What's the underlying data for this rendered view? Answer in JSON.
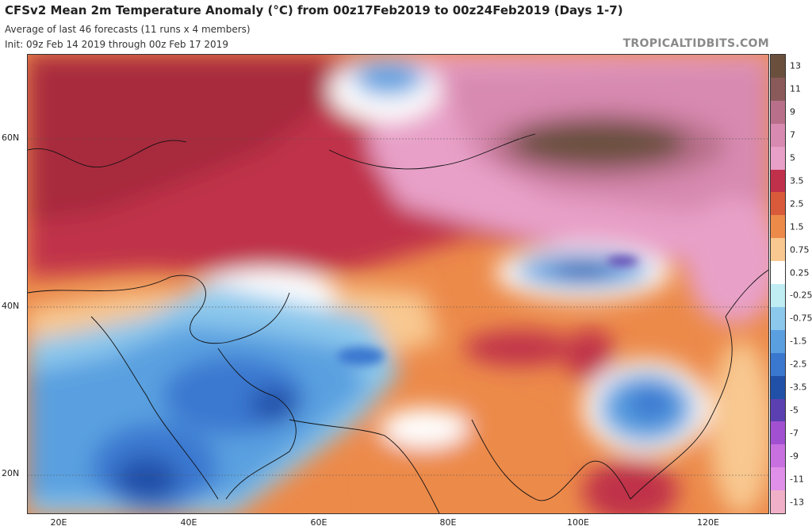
{
  "header": {
    "title": "CFSv2 Mean 2m Temperature Anomaly (°C) from 00z17Feb2019 to 00z24Feb2019 (Days 1-7)",
    "subtitle1": "Average of last 46 forecasts (11 runs x 4 members)",
    "subtitle2": "Init: 09z Feb 14 2019 through 00z Feb 17 2019",
    "watermark": "TROPICALTIDBITS.COM"
  },
  "axes": {
    "lat_labels": [
      "60N",
      "40N",
      "20N"
    ],
    "lon_labels": [
      "20E",
      "40E",
      "60E",
      "80E",
      "100E",
      "120E"
    ]
  },
  "colorbar": {
    "labels": [
      "13",
      "11",
      "9",
      "7",
      "5",
      "3.5",
      "2.5",
      "1.5",
      "0.75",
      "0.25",
      "-0.25",
      "-0.75",
      "-1.5",
      "-2.5",
      "-3.5",
      "-5",
      "-7",
      "-9",
      "-11",
      "-13"
    ],
    "colors": [
      "#6b4f3d",
      "#8a5a5a",
      "#b8708a",
      "#d88ab0",
      "#e8a0c8",
      "#c0304a",
      "#d85a3a",
      "#ec8a4a",
      "#f8c890",
      "#ffffff",
      "#c0ecf4",
      "#8cc8ec",
      "#5aa0e0",
      "#3a78d0",
      "#2050a8",
      "#5a40b0",
      "#a050d0",
      "#c870e0",
      "#e090e8",
      "#f0b0c8"
    ]
  },
  "map": {
    "region": "Eurasia",
    "lat_range": [
      15,
      70
    ],
    "lon_range": [
      15,
      130
    ],
    "anomalies": [
      {
        "label": "Siberia warm maximum",
        "value": 13
      },
      {
        "label": "Mongolia cold",
        "value": -3.5
      },
      {
        "label": "Arabian Peninsula cold",
        "value": -3.5
      },
      {
        "label": "South China cold",
        "value": -2.5
      },
      {
        "label": "Tibet warm",
        "value": 5
      },
      {
        "label": "Russia warm",
        "value": 5
      }
    ]
  }
}
